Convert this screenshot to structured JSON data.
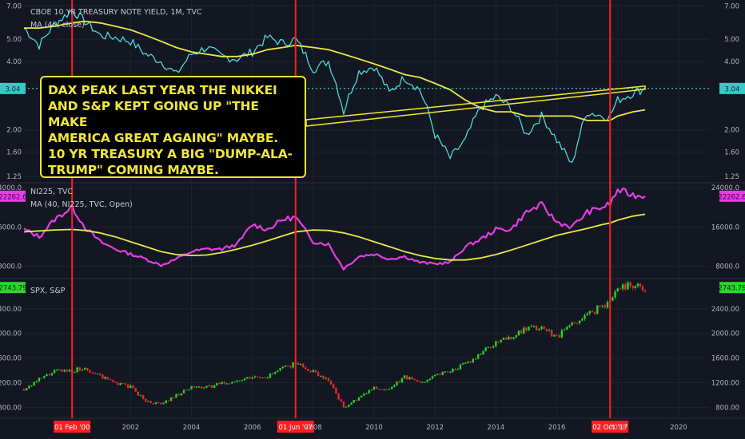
{
  "colors": {
    "background": "#131722",
    "treasury_line": "#4dd9d9",
    "nikkei_line": "#e73ce6",
    "ma_line": "#e8e84a",
    "peak_line": "#ff1f1f",
    "candle_up": "#26d626",
    "candle_down": "#e8282b",
    "annotation": "#f0e63a",
    "price_label_green": "#2ed52e",
    "price_label_magenta": "#e73ce6",
    "price_label_teal": "#36c9c9"
  },
  "annotation": {
    "text": "DAX PEAK LAST YEAR THE NIKKEI\nAND S&P KEPT GOING UP \"THE MAKE\nAMERICA GREAT AGAING\" MAYBE.\n10 YR TREASURY A BIG \"DUMP-ALA-\nTRUMP\" COMING MAYBE."
  },
  "time_axis": {
    "range": [
      1998.5,
      2021
    ],
    "ticks": [
      "2002",
      "2004",
      "2006",
      "2008",
      "2010",
      "2012",
      "2014",
      "2016",
      "2018",
      "2020"
    ],
    "tick_values": [
      2002,
      2004,
      2006,
      2008,
      2010,
      2012,
      2014,
      2016,
      2018,
      2020
    ]
  },
  "markers": [
    {
      "label": "01 Feb '00",
      "x": 2000.08
    },
    {
      "label": "01 Jun '07",
      "x": 2007.42
    },
    {
      "label": "02 Oct '17",
      "x": 2017.75
    }
  ],
  "chart_data": [
    {
      "type": "line",
      "title": "CBOE 10 YR TREASURY NOTE YIELD, 1M, TVC",
      "ma_label": "MA (40, close)",
      "scale": "log",
      "ylim": [
        1.2,
        7.2
      ],
      "yticks": [
        "7.00",
        "5.00",
        "4.00",
        "3.04",
        "2.00",
        "1.60",
        "1.25"
      ],
      "ytick_values": [
        7.0,
        5.0,
        4.0,
        3.04,
        2.0,
        1.6,
        1.25
      ],
      "last_value": "3.04",
      "x": [
        1998.5,
        1999.0,
        1999.5,
        2000.08,
        2000.5,
        2001.0,
        2001.5,
        2002.0,
        2002.5,
        2003.0,
        2003.5,
        2004.0,
        2004.5,
        2005.0,
        2005.5,
        2006.0,
        2006.5,
        2007.0,
        2007.42,
        2008.0,
        2008.5,
        2009.0,
        2009.5,
        2010.0,
        2010.5,
        2011.0,
        2011.5,
        2012.0,
        2012.5,
        2013.0,
        2013.5,
        2014.0,
        2014.5,
        2015.0,
        2015.5,
        2016.0,
        2016.5,
        2017.0,
        2017.5,
        2017.75,
        2018.0,
        2018.5,
        2018.9
      ],
      "values": [
        5.6,
        4.7,
        5.8,
        6.7,
        6.0,
        5.2,
        5.1,
        4.9,
        4.3,
        4.0,
        3.5,
        4.3,
        4.6,
        4.2,
        4.1,
        4.4,
        5.1,
        4.8,
        5.0,
        3.7,
        4.0,
        2.4,
        3.6,
        3.8,
        2.9,
        3.4,
        3.0,
        1.9,
        1.5,
        1.8,
        2.5,
        2.8,
        2.5,
        1.9,
        2.3,
        1.8,
        1.4,
        2.4,
        2.3,
        2.3,
        2.7,
        2.9,
        3.04
      ],
      "ma_values": [
        5.6,
        5.6,
        5.7,
        5.9,
        6.0,
        5.9,
        5.7,
        5.5,
        5.2,
        4.9,
        4.6,
        4.4,
        4.3,
        4.2,
        4.2,
        4.3,
        4.5,
        4.6,
        4.7,
        4.6,
        4.5,
        4.3,
        4.1,
        3.9,
        3.7,
        3.5,
        3.4,
        3.2,
        3.0,
        2.7,
        2.5,
        2.4,
        2.4,
        2.3,
        2.3,
        2.3,
        2.3,
        2.2,
        2.2,
        2.2,
        2.3,
        2.4,
        2.45
      ]
    },
    {
      "type": "line",
      "title": "NI225, TVC",
      "ma_label": "MA (40, NI225, TVC, Open)",
      "scale": "linear",
      "ylim": [
        6000,
        24500
      ],
      "yticks": [
        "24000.0",
        "16000.0",
        "8000.0"
      ],
      "ytick_values": [
        24000,
        16000,
        8000
      ],
      "last_value": "22262.6",
      "x": [
        1998.5,
        1999.0,
        1999.5,
        2000.08,
        2000.5,
        2001.0,
        2001.5,
        2002.0,
        2002.5,
        2003.0,
        2003.5,
        2004.0,
        2004.5,
        2005.0,
        2005.5,
        2006.0,
        2006.5,
        2007.0,
        2007.42,
        2008.0,
        2008.5,
        2009.0,
        2009.5,
        2010.0,
        2010.5,
        2011.0,
        2011.5,
        2012.0,
        2012.5,
        2013.0,
        2013.5,
        2014.0,
        2014.5,
        2015.0,
        2015.5,
        2016.0,
        2016.5,
        2017.0,
        2017.5,
        2017.75,
        2018.0,
        2018.5,
        2018.9
      ],
      "values": [
        15500,
        14000,
        17500,
        20000,
        16000,
        13000,
        11500,
        10500,
        9500,
        8200,
        9500,
        11000,
        11500,
        11500,
        12500,
        16500,
        15500,
        17500,
        18000,
        13000,
        12500,
        7500,
        10000,
        10500,
        9500,
        10000,
        8800,
        8500,
        8800,
        12000,
        13500,
        15500,
        15500,
        19000,
        20500,
        17000,
        16000,
        19000,
        20000,
        20700,
        23500,
        22500,
        22262.6
      ],
      "ma_values": [
        15000,
        15200,
        15400,
        15500,
        15300,
        14800,
        14000,
        13000,
        12000,
        11000,
        10400,
        10200,
        10300,
        10800,
        11500,
        12300,
        13200,
        14200,
        15000,
        15400,
        15300,
        14800,
        14000,
        13000,
        12000,
        11000,
        10200,
        9600,
        9300,
        9300,
        9700,
        10400,
        11300,
        12300,
        13300,
        14300,
        15000,
        15700,
        16500,
        16800,
        17400,
        18200,
        18600
      ]
    },
    {
      "type": "candlestick",
      "title": "SPX, S&P",
      "scale": "linear",
      "ylim": [
        650,
        2850
      ],
      "yticks": [
        "2400.00",
        "2000.00",
        "1600.00",
        "1200.00",
        "800.00"
      ],
      "ytick_values": [
        2400,
        2000,
        1600,
        1200,
        800
      ],
      "last_value": "2743.79",
      "x": [
        1998.5,
        1999.0,
        1999.5,
        2000.08,
        2000.5,
        2001.0,
        2001.5,
        2002.0,
        2002.5,
        2003.0,
        2003.5,
        2004.0,
        2004.5,
        2005.0,
        2005.5,
        2006.0,
        2006.5,
        2007.0,
        2007.42,
        2008.0,
        2008.5,
        2009.0,
        2009.5,
        2010.0,
        2010.5,
        2011.0,
        2011.5,
        2012.0,
        2012.5,
        2013.0,
        2013.5,
        2014.0,
        2014.5,
        2015.0,
        2015.5,
        2016.0,
        2016.5,
        2017.0,
        2017.5,
        2017.75,
        2018.0,
        2018.5,
        2018.9
      ],
      "values": [
        1100,
        1250,
        1380,
        1400,
        1450,
        1300,
        1200,
        1130,
        900,
        850,
        1000,
        1120,
        1120,
        1190,
        1220,
        1280,
        1300,
        1430,
        1520,
        1380,
        1250,
        800,
        950,
        1120,
        1080,
        1300,
        1200,
        1330,
        1400,
        1500,
        1680,
        1850,
        1950,
        2060,
        2100,
        1950,
        2150,
        2300,
        2450,
        2520,
        2750,
        2800,
        2743.79
      ]
    }
  ]
}
